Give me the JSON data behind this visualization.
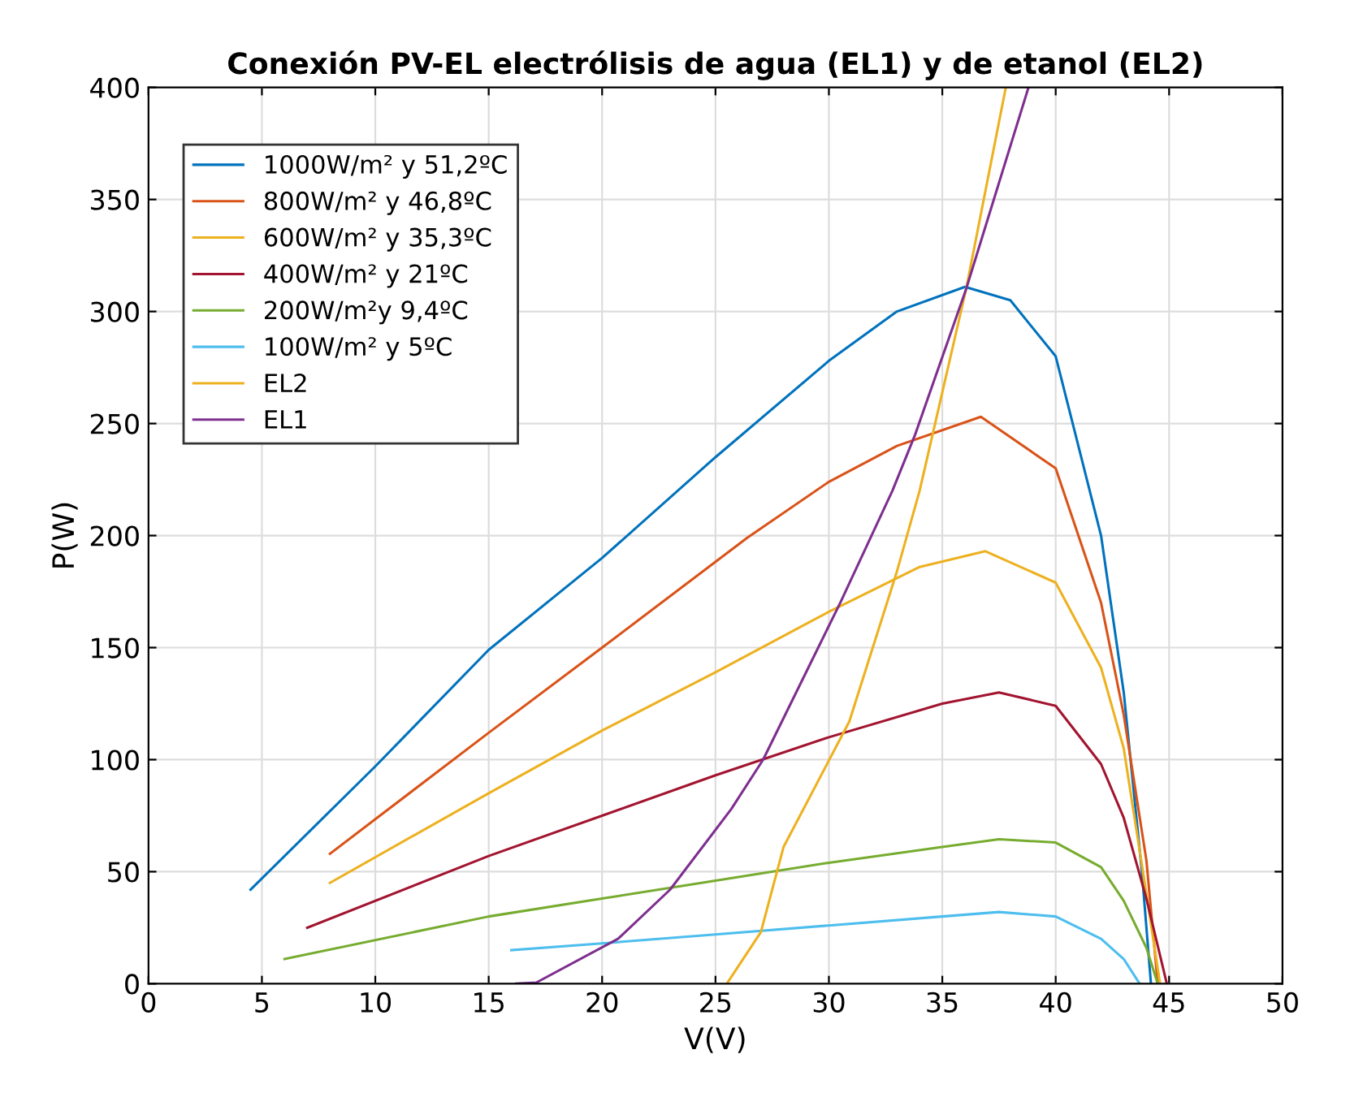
{
  "chart_data": {
    "type": "line",
    "title": "Conexión PV-EL electrólisis de agua (EL1) y de etanol (EL2)",
    "xlabel": "V(V)",
    "ylabel": "P(W)",
    "xlim": [
      0,
      50
    ],
    "ylim": [
      0,
      400
    ],
    "xticks": [
      0,
      5,
      10,
      15,
      20,
      25,
      30,
      35,
      40,
      45,
      50
    ],
    "yticks": [
      0,
      50,
      100,
      150,
      200,
      250,
      300,
      350,
      400
    ],
    "grid": true,
    "legend": "top left",
    "line_style": "solid",
    "marker": "none",
    "series": [
      {
        "name": "1000W/m² y 51,2ºC",
        "color": "#0072bd",
        "x": [
          4.5,
          10,
          15,
          20,
          25,
          30,
          33,
          36,
          38,
          40,
          42,
          43,
          43.8,
          44.2
        ],
        "values": [
          42,
          97,
          149,
          190,
          235,
          278,
          300,
          311,
          305,
          280,
          200,
          130,
          50,
          0
        ]
      },
      {
        "name": "800W/m² y 46,8ºC",
        "color": "#d95319",
        "x": [
          8,
          15,
          20,
          26.4,
          30,
          33,
          36.7,
          40,
          42,
          43,
          44,
          44.5
        ],
        "values": [
          58,
          112,
          150,
          199,
          224,
          240,
          253,
          230,
          170,
          120,
          55,
          0
        ]
      },
      {
        "name": "600W/m² y 35,3ºC",
        "color": "#edb120",
        "x": [
          8,
          15,
          20,
          25,
          30,
          34,
          36.9,
          40,
          42,
          43,
          44,
          44.6
        ],
        "values": [
          45,
          85,
          113,
          139,
          166,
          186,
          193,
          179,
          141,
          105,
          40,
          0
        ]
      },
      {
        "name": "400W/m² y 21ºC",
        "color": "#a2142f",
        "x": [
          7,
          15,
          20,
          25,
          30,
          35,
          37.5,
          40,
          42,
          43,
          44,
          44.9
        ],
        "values": [
          25,
          57,
          75,
          93,
          110,
          125,
          130,
          124,
          98,
          74,
          38,
          0
        ]
      },
      {
        "name": "200W/m²y 9,4ºC",
        "color": "#77ac30",
        "x": [
          6,
          15,
          20,
          25,
          30,
          35,
          37.5,
          40,
          42,
          43,
          44,
          44.5
        ],
        "values": [
          11,
          30,
          38,
          46,
          54,
          61,
          64.5,
          63,
          52,
          37,
          16,
          0
        ]
      },
      {
        "name": "100W/m² y 5ºC",
        "color": "#4dbeee",
        "x": [
          16,
          20,
          25,
          30,
          35,
          37.5,
          40,
          42,
          43,
          43.7
        ],
        "values": [
          15,
          18,
          22,
          26,
          30,
          32,
          30,
          20,
          11,
          0
        ]
      },
      {
        "name": "EL2",
        "color": "#edb120",
        "x": [
          25.5,
          27,
          28,
          30.9,
          33,
          34,
          36.05,
          37.8
        ],
        "values": [
          0,
          23,
          61,
          117,
          184,
          220,
          310,
          400
        ]
      },
      {
        "name": "EL1",
        "color": "#7e2f8e",
        "x": [
          16.2,
          17.1,
          20.7,
          23,
          25.7,
          27.1,
          30.5,
          32.8,
          33.8,
          36.05,
          38.8
        ],
        "values": [
          0,
          0.5,
          20,
          42,
          78,
          100,
          170,
          220,
          245,
          310,
          400
        ]
      }
    ]
  }
}
